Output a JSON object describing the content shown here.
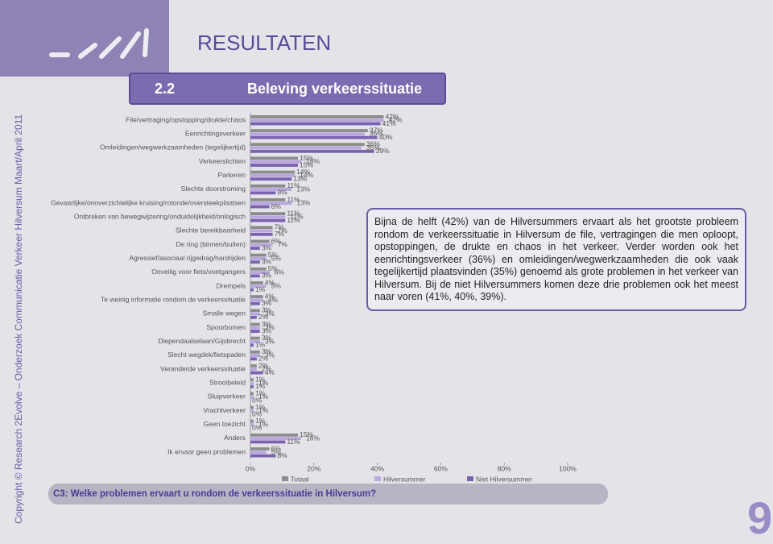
{
  "page_title": "RESULTATEN",
  "section_number": "2.2",
  "section_title": "Beleving verkeerssituatie",
  "copyright": "Copyright © Research 2Evolve – Onderzoek Communicatie Verkeer Hilversum Maart/April 2011",
  "summary": "Bijna de helft (42%) van de Hilversummers ervaart als het grootste probleem rondom de verkeerssituatie in Hilversum de file, vertragingen die men oploopt, opstoppingen, de drukte en chaos in het verkeer. Verder worden ook het eenrichtingsverkeer (36%) en omleidingen/wegwerkzaamheden die ook vaak tegelijkertijd plaatsvinden (35%) genoemd als grote problemen in het verkeer van Hilversum. Bij de niet Hilversummers komen deze drie problemen ook het meest naar voren (41%, 40%, 39%).",
  "question": "C3: Welke problemen ervaart u rondom de verkeerssituatie in Hilversum?",
  "page_number": "9",
  "chart_data": {
    "type": "hbar",
    "categories": [
      "File/vertraging/opstopping/drukte/chaos",
      "Eenrichtingsverkeer",
      "Omleidingen/wegwerkzaamheden (tegelijkertijd)",
      "Verkeerslichten",
      "Parkeren",
      "Slechte doorstroming",
      "Gevaarlijke/onoverzichtelijke kruising/rotonde/oversteekplaatsen",
      "Ontbreken van bewegwijzering/onduidelijkheid/onlogisch",
      "Slechte bereikbaarheid",
      "De ring (binnen/buiten)",
      "Agressief/asociaal rijgedrag/hardrijden",
      "Onveilig voor fiets/voetgangers",
      "Drempels",
      "Te weinig informatie rondom de verkeerssituatie",
      "Smalle wegen",
      "Spoorbomen",
      "Diependaalselaan/Gijsbrecht",
      "Slecht wegdek/fietspaden",
      "Veranderde verkeerssituatie",
      "Strooibeleid",
      "Sluipverkeer",
      "Vrachtverkeer",
      "Geen toezicht",
      "Anders",
      "Ik ervaar geen problemen"
    ],
    "series": [
      {
        "name": "Totaal",
        "color": "#8c8c8c",
        "values": [
          42,
          37,
          36,
          15,
          14,
          11,
          11,
          11,
          7,
          6,
          5,
          5,
          4,
          4,
          3,
          3,
          3,
          3,
          2,
          1,
          1,
          1,
          1,
          15,
          6
        ],
        "value_labels": [
          "42%",
          "37%",
          "36%",
          "15%",
          "14%",
          "11%",
          "11%",
          "11%",
          "7%",
          "6%",
          "5%",
          "5%",
          "4%",
          "4%",
          "3%",
          "3%",
          "3%",
          "3%",
          "2%",
          "1%",
          "1%",
          "1%",
          "1%",
          "15%",
          "6%"
        ]
      },
      {
        "name": "Hilversummer",
        "color": "#b9a8de",
        "values": [
          42,
          36,
          35,
          16,
          14,
          13,
          13,
          11,
          7,
          7,
          5,
          6,
          5,
          4,
          3,
          3,
          3,
          3,
          2,
          1,
          1,
          1,
          1,
          16,
          5
        ],
        "value_labels": [
          "42%",
          "36%",
          "35%",
          "16%",
          "14%",
          "13%",
          "13%",
          "11%",
          "7%",
          "7%",
          "5%",
          "6%",
          "5%",
          "4%",
          "3%",
          "3%",
          "3%",
          "3%",
          "2%",
          "1%",
          "1%",
          "1%",
          "1%",
          "16%",
          "5%"
        ]
      },
      {
        "name": "Niet Hilversummer",
        "color": "#7a62b0",
        "values": [
          41,
          40,
          39,
          15,
          13,
          8,
          6,
          11,
          7,
          3,
          3,
          3,
          1,
          3,
          2,
          3,
          1,
          2,
          4,
          1,
          0,
          0,
          0,
          11,
          8
        ],
        "value_labels": [
          "41%",
          "40%",
          "39%",
          "15%",
          "13%",
          "8%",
          "6%",
          "11%",
          "7%",
          "3%",
          "3%",
          "3%",
          "1%",
          "3%",
          "2%",
          "3%",
          "1%",
          "2%",
          "4%",
          "1%",
          "0%",
          "0%",
          "0%",
          "11%",
          "8%"
        ]
      }
    ],
    "xlim": [
      0,
      100
    ],
    "xticks": [
      {
        "value": 0,
        "label": "0%"
      },
      {
        "value": 20,
        "label": "20%"
      },
      {
        "value": 40,
        "label": "40%"
      },
      {
        "value": 60,
        "label": "60%"
      },
      {
        "value": 80,
        "label": "80%"
      },
      {
        "value": 100,
        "label": "100%"
      }
    ],
    "legend": "bottom"
  }
}
